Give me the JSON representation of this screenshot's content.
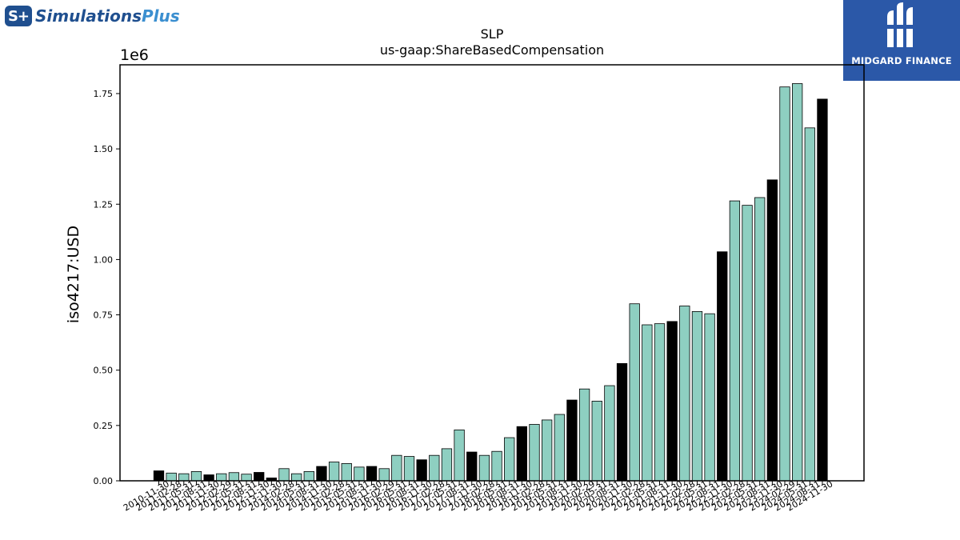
{
  "logo_left": {
    "icon": "simulations-plus-logo-icon",
    "mark": "S+",
    "name_main": "Simulations",
    "name_accent": "Plus"
  },
  "logo_right": {
    "icon": "midgard-finance-logo-icon",
    "text": "MIDGARD FINANCE"
  },
  "chart_data": {
    "type": "bar",
    "title": "SLP",
    "subtitle": "us-gaap:ShareBasedCompensation",
    "xlabel": "",
    "ylabel": "iso4217:USD",
    "scale_label": "1e6",
    "ylim": [
      0,
      1880000
    ],
    "yticks": [
      0,
      250000,
      500000,
      750000,
      1000000,
      1250000,
      1500000,
      1750000
    ],
    "ytick_labels": [
      "0.00",
      "0.25",
      "0.50",
      "0.75",
      "1.00",
      "1.25",
      "1.50",
      "1.75"
    ],
    "grid": false,
    "colors": {
      "annual": "#000000",
      "quarterly": "#8ecfc1",
      "edge": "#000000"
    },
    "categories": [
      "2010-11-30",
      "2011-02-28",
      "2011-05-31",
      "2011-08-31",
      "2011-11-30",
      "2012-02-29",
      "2012-05-31",
      "2012-08-31",
      "2012-11-30",
      "2013-11-30",
      "2014-02-28",
      "2014-05-31",
      "2014-08-31",
      "2014-11-30",
      "2015-02-28",
      "2015-05-31",
      "2015-08-31",
      "2015-11-30",
      "2016-02-29",
      "2016-05-31",
      "2016-08-31",
      "2016-11-30",
      "2017-02-28",
      "2017-05-31",
      "2017-08-31",
      "2017-11-30",
      "2018-02-28",
      "2018-05-31",
      "2018-08-31",
      "2018-11-30",
      "2019-02-28",
      "2019-05-31",
      "2019-08-31",
      "2019-11-30",
      "2020-02-29",
      "2020-05-31",
      "2020-08-31",
      "2020-11-30",
      "2021-02-28",
      "2021-05-31",
      "2021-08-31",
      "2021-11-30",
      "2022-02-28",
      "2022-05-31",
      "2022-08-31",
      "2022-11-30",
      "2023-02-28",
      "2023-05-31",
      "2023-08-31",
      "2023-11-30",
      "2024-02-29",
      "2024-05-31",
      "2024-08-31",
      "2024-11-30"
    ],
    "values": [
      45000,
      35000,
      32000,
      42000,
      27000,
      32000,
      37000,
      30000,
      38000,
      13000,
      55000,
      32000,
      42000,
      65000,
      85000,
      78000,
      62000,
      65000,
      55000,
      115000,
      110000,
      95000,
      115000,
      145000,
      230000,
      130000,
      115000,
      133000,
      195000,
      245000,
      255000,
      275000,
      300000,
      365000,
      415000,
      360000,
      430000,
      530000,
      800000,
      705000,
      710000,
      720000,
      790000,
      765000,
      755000,
      1035000,
      1265000,
      1245000,
      1280000,
      1360000,
      1780000,
      1795000,
      1595000,
      1725000
    ],
    "annual": [
      true,
      false,
      false,
      false,
      true,
      false,
      false,
      false,
      true,
      true,
      false,
      false,
      false,
      true,
      false,
      false,
      false,
      true,
      false,
      false,
      false,
      true,
      false,
      false,
      false,
      true,
      false,
      false,
      false,
      true,
      false,
      false,
      false,
      true,
      false,
      false,
      false,
      true,
      false,
      false,
      false,
      true,
      false,
      false,
      false,
      true,
      false,
      false,
      false,
      true,
      false,
      false,
      false,
      true
    ]
  }
}
